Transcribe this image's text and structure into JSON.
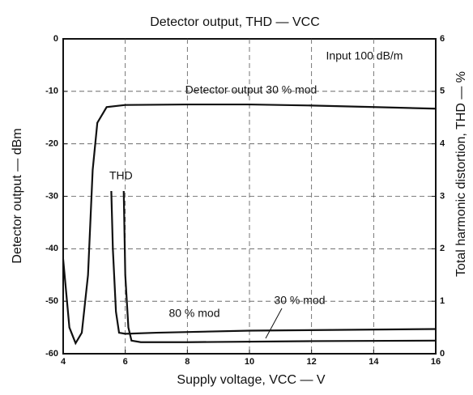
{
  "chart_data": {
    "type": "line",
    "title": "Detector output, THD — VCC",
    "xlabel": "Supply voltage, VCC — V",
    "ylabel": "Detector output — dBm",
    "y2label": "Total harmonic distortion, THD — %",
    "annotations": [
      "Input 100 dB/m",
      "THD"
    ],
    "xlim": [
      4,
      16
    ],
    "xticks": [
      4,
      6,
      8,
      10,
      12,
      14,
      16
    ],
    "ylim": [
      -60,
      0
    ],
    "yticks": [
      0,
      -10,
      -20,
      -30,
      -40,
      -50,
      -60
    ],
    "y2lim": [
      0,
      6
    ],
    "y2ticks": [
      0,
      1,
      2,
      3,
      4,
      5,
      6
    ],
    "grid": true,
    "series": [
      {
        "name": "Detector output 30 % mod",
        "color": "#111111",
        "x": [
          4,
          4.2,
          4.4,
          4.6,
          4.8,
          4.95,
          5.1,
          5.4,
          6,
          8,
          10,
          12,
          14,
          16
        ],
        "values": [
          -42,
          -55,
          -58,
          -56,
          -45,
          -25,
          -16,
          -13,
          -12.6,
          -12.5,
          -12.5,
          -12.7,
          -13,
          -13.3
        ]
      },
      {
        "name": "80 % mod",
        "color": "#111111",
        "axis": "y2",
        "x": [
          5.55,
          5.6,
          5.7,
          5.8,
          6,
          7,
          10,
          16
        ],
        "values": [
          3.1,
          2,
          0.8,
          0.4,
          0.38,
          0.4,
          0.44,
          0.47
        ]
      },
      {
        "name": "30 % mod",
        "color": "#111111",
        "axis": "y2",
        "x": [
          5.95,
          6,
          6.1,
          6.2,
          6.5,
          8,
          12,
          16
        ],
        "values": [
          3.1,
          1.5,
          0.5,
          0.25,
          0.22,
          0.22,
          0.24,
          0.25
        ]
      }
    ]
  }
}
